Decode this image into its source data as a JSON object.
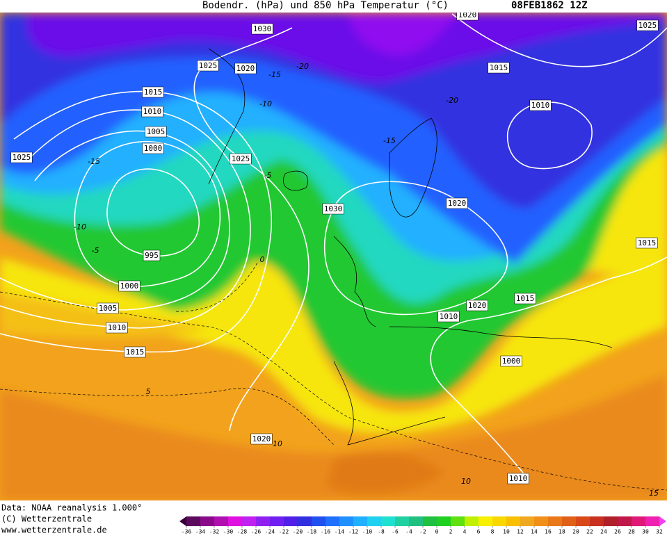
{
  "header": {
    "title": "Bodendr. (hPa) und 850 hPa Temperatur (°C)",
    "date": "08FEB1862 12Z"
  },
  "footer": {
    "lines": [
      "Data: NOAA reanalysis 1.000°",
      "(C) Wetterzentrale",
      "www.wetterzentrale.de"
    ]
  },
  "isobar_labels": [
    "1030",
    "1020",
    "1025",
    "1025",
    "1020",
    "1015",
    "1015",
    "1010",
    "1010",
    "1005",
    "1000",
    "1025",
    "1025",
    "1030",
    "1020",
    "995",
    "1015",
    "1000",
    "1020",
    "1015",
    "1005",
    "1010",
    "1010",
    "1015",
    "1000",
    "1020",
    "1010"
  ],
  "temperature_labels": [
    "-15",
    "-20",
    "-10",
    "-20",
    "-15",
    "-15",
    "-10",
    "-5",
    "-5",
    "0",
    "5",
    "10",
    "10",
    "15"
  ],
  "colorbar": {
    "ticks": [
      -36,
      -34,
      -32,
      -30,
      -28,
      -26,
      -24,
      -22,
      -20,
      -18,
      -16,
      -14,
      -12,
      -10,
      -8,
      -6,
      -4,
      -2,
      0,
      2,
      4,
      6,
      8,
      10,
      12,
      14,
      16,
      18,
      20,
      22,
      24,
      26,
      28,
      30,
      32
    ],
    "colors": [
      "#3a003a",
      "#5c0a5c",
      "#8a0a8a",
      "#b010b0",
      "#e010e0",
      "#c020f0",
      "#9020f0",
      "#7020f0",
      "#5020e8",
      "#3030e0",
      "#2050f0",
      "#2070ff",
      "#2090ff",
      "#20b0ff",
      "#20d0f0",
      "#20e0d0",
      "#20d0a0",
      "#20c080",
      "#20c040",
      "#20d020",
      "#60e010",
      "#c0f000",
      "#f8f000",
      "#f8d800",
      "#f8c000",
      "#f0a820",
      "#f09018",
      "#e87818",
      "#e06018",
      "#d84818",
      "#c83020",
      "#b02028",
      "#c01848",
      "#e01878",
      "#f020b0",
      "#f040f0"
    ]
  }
}
